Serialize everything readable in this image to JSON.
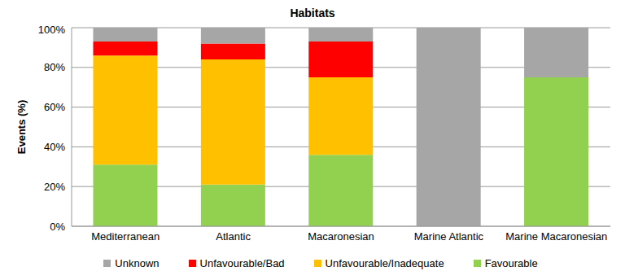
{
  "chart_data": {
    "type": "bar",
    "title": "Habitats",
    "y_label": "Events (%)",
    "categories": [
      "Mediterranean",
      "Atlantic",
      "Macaronesian",
      "Marine Atlantic",
      "Marine Macaronesian"
    ],
    "series": [
      {
        "name": "Favourable",
        "color": "#92d050",
        "values": [
          31,
          21,
          36,
          0,
          75
        ]
      },
      {
        "name": "Unfavourable/Inadequate",
        "color": "#ffc000",
        "values": [
          55,
          63,
          39,
          0,
          0
        ]
      },
      {
        "name": "Unfavourable/Bad",
        "color": "#ff0000",
        "values": [
          7,
          8,
          18,
          0,
          0
        ]
      },
      {
        "name": "Unknown",
        "color": "#a6a6a6",
        "values": [
          7,
          8,
          7,
          100,
          25
        ]
      }
    ],
    "ylim": [
      0,
      100
    ],
    "yticks": [
      {
        "value": 0,
        "label": "0%"
      },
      {
        "value": 20,
        "label": "20%"
      },
      {
        "value": 40,
        "label": "40%"
      },
      {
        "value": 60,
        "label": "60%"
      },
      {
        "value": 80,
        "label": "80%"
      },
      {
        "value": 100,
        "label": "100%"
      }
    ],
    "stacked": true,
    "grid": true,
    "legend": "bottom"
  }
}
